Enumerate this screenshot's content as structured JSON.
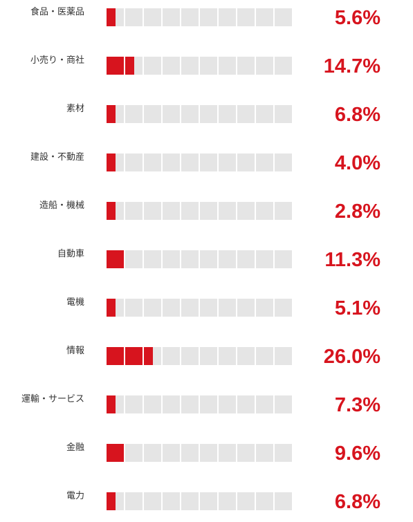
{
  "chart_data": {
    "type": "bar",
    "categories": [
      "食品・医薬品",
      "小売り・商社",
      "素材",
      "建設・不動産",
      "造船・機械",
      "自動車",
      "電機",
      "情報",
      "運輸・サービス",
      "金融",
      "電力"
    ],
    "values": [
      5.6,
      14.7,
      6.8,
      4.0,
      2.8,
      11.3,
      5.1,
      26.0,
      7.3,
      9.6,
      6.8
    ],
    "value_labels": [
      "5.6%",
      "14.7%",
      "6.8%",
      "4.0%",
      "2.8%",
      "11.3%",
      "5.1%",
      "26.0%",
      "7.3%",
      "9.6%",
      "6.8%"
    ],
    "unit": "%",
    "cells_per_bar": 10,
    "percent_per_cell": 10,
    "filled_cells": [
      0.5,
      1.5,
      0.5,
      0.5,
      0.5,
      1,
      0.5,
      2.5,
      0.5,
      1,
      0.5
    ],
    "colors": {
      "filled": "#d7141e",
      "empty": "#e5e5e5",
      "value_text": "#d7141e",
      "label_text": "#333333"
    },
    "legend": "none",
    "grid": false
  }
}
